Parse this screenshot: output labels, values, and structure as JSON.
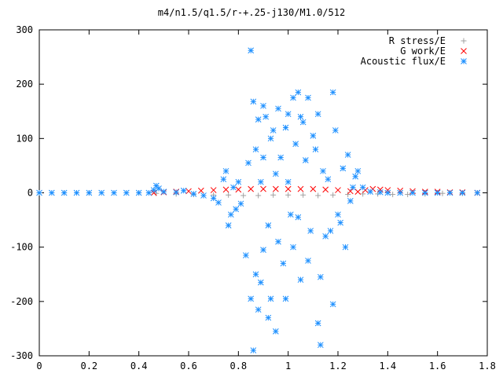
{
  "chart_data": {
    "type": "scatter",
    "title": "m4/n1.5/q1.5/r-+.25-j130/M1.0/512",
    "xlabel": "",
    "ylabel": "",
    "xlim": [
      0,
      1.8
    ],
    "ylim": [
      -300,
      300
    ],
    "x_ticks": [
      "0",
      "0.2",
      "0.4",
      "0.6",
      "0.8",
      "1",
      "1.2",
      "1.4",
      "1.6",
      "1.8"
    ],
    "y_ticks": [
      "300",
      "200",
      "100",
      "0",
      "-100",
      "-200",
      "-300"
    ],
    "grid": false,
    "legend_position": "top-right",
    "series": [
      {
        "name": "R stress/E",
        "marker": "plus",
        "color": "#a0a0a0",
        "points": [
          [
            0.0,
            0
          ],
          [
            0.1,
            0
          ],
          [
            0.2,
            0
          ],
          [
            0.3,
            0
          ],
          [
            0.4,
            0
          ],
          [
            0.47,
            -1
          ],
          [
            0.55,
            -2
          ],
          [
            0.62,
            -3
          ],
          [
            0.7,
            -4
          ],
          [
            0.76,
            -4
          ],
          [
            0.82,
            -5
          ],
          [
            0.88,
            -5
          ],
          [
            0.94,
            -4
          ],
          [
            1.0,
            -4
          ],
          [
            1.06,
            -4
          ],
          [
            1.12,
            -5
          ],
          [
            1.18,
            -4
          ],
          [
            1.24,
            -3
          ],
          [
            1.3,
            -2
          ],
          [
            1.36,
            -2
          ],
          [
            1.42,
            -3
          ],
          [
            1.48,
            -3
          ],
          [
            1.55,
            -2
          ],
          [
            1.62,
            -1
          ],
          [
            1.7,
            -1
          ],
          [
            1.76,
            0
          ]
        ]
      },
      {
        "name": "G work/E",
        "marker": "cross",
        "color": "#ff0000",
        "points": [
          [
            0.46,
            0
          ],
          [
            0.5,
            1
          ],
          [
            0.55,
            2
          ],
          [
            0.6,
            3
          ],
          [
            0.65,
            4
          ],
          [
            0.7,
            5
          ],
          [
            0.75,
            6
          ],
          [
            0.8,
            6
          ],
          [
            0.85,
            7
          ],
          [
            0.9,
            7
          ],
          [
            0.95,
            7
          ],
          [
            1.0,
            7
          ],
          [
            1.05,
            7
          ],
          [
            1.1,
            7
          ],
          [
            1.15,
            6
          ],
          [
            1.2,
            5
          ],
          [
            1.25,
            3
          ],
          [
            1.28,
            2
          ],
          [
            1.31,
            5
          ],
          [
            1.34,
            7
          ],
          [
            1.37,
            6
          ],
          [
            1.4,
            5
          ],
          [
            1.45,
            4
          ],
          [
            1.5,
            3
          ],
          [
            1.55,
            2
          ],
          [
            1.6,
            2
          ],
          [
            1.65,
            1
          ],
          [
            1.7,
            1
          ],
          [
            1.76,
            0
          ]
        ]
      },
      {
        "name": "Acoustic flux/E",
        "marker": "star",
        "color": "#1e90ff",
        "points": [
          [
            0.0,
            0
          ],
          [
            0.05,
            0
          ],
          [
            0.1,
            0
          ],
          [
            0.15,
            0
          ],
          [
            0.2,
            0
          ],
          [
            0.25,
            0
          ],
          [
            0.3,
            0
          ],
          [
            0.35,
            0
          ],
          [
            0.4,
            0
          ],
          [
            0.44,
            0
          ],
          [
            0.46,
            5
          ],
          [
            0.47,
            13
          ],
          [
            0.48,
            8
          ],
          [
            0.5,
            2
          ],
          [
            0.55,
            1
          ],
          [
            0.58,
            4
          ],
          [
            0.62,
            -2
          ],
          [
            0.66,
            -5
          ],
          [
            0.7,
            -10
          ],
          [
            0.72,
            -18
          ],
          [
            0.74,
            25
          ],
          [
            0.75,
            40
          ],
          [
            0.76,
            -60
          ],
          [
            0.77,
            -40
          ],
          [
            0.78,
            10
          ],
          [
            0.79,
            -30
          ],
          [
            0.8,
            20
          ],
          [
            0.81,
            -20
          ],
          [
            0.83,
            -115
          ],
          [
            0.84,
            55
          ],
          [
            0.85,
            262
          ],
          [
            0.85,
            -195
          ],
          [
            0.86,
            168
          ],
          [
            0.86,
            -290
          ],
          [
            0.87,
            80
          ],
          [
            0.87,
            -150
          ],
          [
            0.88,
            135
          ],
          [
            0.88,
            -215
          ],
          [
            0.89,
            20
          ],
          [
            0.89,
            -165
          ],
          [
            0.9,
            160
          ],
          [
            0.9,
            65
          ],
          [
            0.9,
            -105
          ],
          [
            0.91,
            140
          ],
          [
            0.92,
            -60
          ],
          [
            0.92,
            -230
          ],
          [
            0.93,
            100
          ],
          [
            0.93,
            -195
          ],
          [
            0.94,
            115
          ],
          [
            0.95,
            35
          ],
          [
            0.95,
            -255
          ],
          [
            0.96,
            -90
          ],
          [
            0.96,
            155
          ],
          [
            0.97,
            65
          ],
          [
            0.98,
            -130
          ],
          [
            0.99,
            120
          ],
          [
            0.99,
            -195
          ],
          [
            1.0,
            20
          ],
          [
            1.0,
            145
          ],
          [
            1.01,
            -40
          ],
          [
            1.02,
            175
          ],
          [
            1.02,
            -100
          ],
          [
            1.03,
            90
          ],
          [
            1.04,
            -45
          ],
          [
            1.04,
            185
          ],
          [
            1.05,
            -160
          ],
          [
            1.05,
            140
          ],
          [
            1.06,
            130
          ],
          [
            1.07,
            60
          ],
          [
            1.08,
            -125
          ],
          [
            1.08,
            175
          ],
          [
            1.09,
            -70
          ],
          [
            1.1,
            105
          ],
          [
            1.11,
            80
          ],
          [
            1.12,
            -240
          ],
          [
            1.12,
            145
          ],
          [
            1.13,
            -280
          ],
          [
            1.13,
            -155
          ],
          [
            1.14,
            40
          ],
          [
            1.15,
            -80
          ],
          [
            1.16,
            25
          ],
          [
            1.17,
            -70
          ],
          [
            1.18,
            185
          ],
          [
            1.18,
            -205
          ],
          [
            1.19,
            115
          ],
          [
            1.2,
            -40
          ],
          [
            1.21,
            -55
          ],
          [
            1.22,
            45
          ],
          [
            1.23,
            -100
          ],
          [
            1.24,
            70
          ],
          [
            1.25,
            -15
          ],
          [
            1.26,
            10
          ],
          [
            1.27,
            30
          ],
          [
            1.28,
            40
          ],
          [
            1.3,
            10
          ],
          [
            1.33,
            2
          ],
          [
            1.37,
            1
          ],
          [
            1.4,
            0
          ],
          [
            1.45,
            0
          ],
          [
            1.5,
            0
          ],
          [
            1.55,
            0
          ],
          [
            1.6,
            0
          ],
          [
            1.65,
            0
          ],
          [
            1.7,
            0
          ],
          [
            1.76,
            0
          ]
        ]
      }
    ]
  }
}
